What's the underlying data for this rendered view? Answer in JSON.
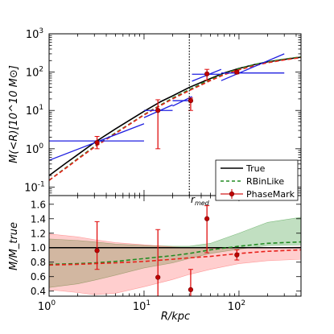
{
  "chart_data": [
    {
      "type": "line",
      "panel": "top",
      "ylabel": "M(<R)[10^10 M⊙]",
      "xscale": "log",
      "yscale": "log",
      "xlim": [
        1,
        450
      ],
      "ylim": [
        0.06,
        1000
      ],
      "xticks": [
        {
          "v": 1,
          "b": "10",
          "e": "0"
        },
        {
          "v": 10,
          "b": "10",
          "e": "1"
        },
        {
          "v": 100,
          "b": "10",
          "e": "2"
        }
      ],
      "yticks": [
        {
          "v": 0.1,
          "b": "10",
          "e": "-1"
        },
        {
          "v": 1,
          "b": "10",
          "e": "0"
        },
        {
          "v": 10,
          "b": "10",
          "e": "1"
        },
        {
          "v": 100,
          "b": "10",
          "e": "2"
        },
        {
          "v": 1000,
          "b": "10",
          "e": "3"
        }
      ],
      "rmed": {
        "x": 30,
        "label_base": "r",
        "label_sub": "med"
      },
      "legend": {
        "position": "lower-right",
        "entries": [
          "True",
          "RBinLike",
          "PhaseMark"
        ]
      },
      "series": [
        {
          "name": "True",
          "style": "solid",
          "color": "#000000",
          "x": [
            1,
            1.5,
            2,
            3,
            5,
            7,
            10,
            15,
            20,
            30,
            50,
            70,
            100,
            150,
            200,
            300,
            450
          ],
          "y": [
            0.2,
            0.42,
            0.7,
            1.45,
            3.3,
            5.5,
            9.5,
            17,
            24,
            40,
            68,
            95,
            125,
            160,
            185,
            215,
            245
          ]
        },
        {
          "name": "RBinLike",
          "style": "dashed",
          "color": "#228b22",
          "x": [
            1,
            1.5,
            2,
            3,
            5,
            7,
            10,
            15,
            20,
            30,
            50,
            70,
            100,
            150,
            200,
            300,
            450
          ],
          "y": [
            0.15,
            0.32,
            0.55,
            1.15,
            2.6,
            4.4,
            7.8,
            14,
            21,
            35,
            64,
            91,
            122,
            160,
            186,
            218,
            250
          ]
        },
        {
          "name": "PhaseMark",
          "style": "dashed",
          "color": "#e8221c",
          "x": [
            1,
            1.5,
            2,
            3,
            5,
            7,
            10,
            15,
            20,
            30,
            50,
            70,
            100,
            150,
            200,
            300,
            450
          ],
          "y": [
            0.15,
            0.31,
            0.53,
            1.1,
            2.5,
            4.3,
            7.6,
            13.5,
            20,
            33,
            60,
            86,
            115,
            150,
            176,
            208,
            240
          ]
        }
      ],
      "phasemark_points": [
        {
          "x": 3.2,
          "y": 1.45,
          "ylo": 1.0,
          "yhi": 2.1
        },
        {
          "x": 14,
          "y": 10,
          "ylo": 1.0,
          "yhi": 19
        },
        {
          "x": 31,
          "y": 18,
          "ylo": 10,
          "yhi": 21
        },
        {
          "x": 46,
          "y": 90,
          "ylo": 62,
          "yhi": 118
        },
        {
          "x": 95,
          "y": 100,
          "ylo": 90,
          "yhi": 112
        }
      ],
      "blue_bins": [
        {
          "hx": [
            1,
            10
          ],
          "hy": 1.6,
          "sx": [
            1,
            10
          ],
          "sy": [
            0.5,
            4.5
          ]
        },
        {
          "hx": [
            10,
            20
          ],
          "hy": 10,
          "sx": [
            10,
            20
          ],
          "sy": [
            6.5,
            14
          ]
        },
        {
          "hx": [
            20,
            32
          ],
          "hy": 18,
          "sx": [
            20,
            32
          ],
          "sy": [
            13,
            23
          ]
        },
        {
          "hx": [
            32,
            65
          ],
          "hy": 88,
          "sx": [
            32,
            65
          ],
          "sy": [
            58,
            118
          ]
        },
        {
          "hx": [
            65,
            300
          ],
          "hy": 95,
          "sx": [
            65,
            300
          ],
          "sy": [
            60,
            300
          ]
        }
      ]
    },
    {
      "type": "line",
      "panel": "bottom",
      "xlabel": "R/kpc",
      "ylabel": "M/M_true",
      "xscale": "log",
      "xlim": [
        1,
        450
      ],
      "ylim": [
        0.33,
        1.72
      ],
      "yticks": [
        0.4,
        0.6,
        0.8,
        1.0,
        1.2,
        1.4,
        1.6
      ],
      "series": [
        {
          "name": "True",
          "style": "solid",
          "color": "#000000",
          "x": [
            1,
            450
          ],
          "y": [
            1.0,
            1.0
          ]
        },
        {
          "name": "RBinLike",
          "style": "dashed",
          "color": "#228b22",
          "x": [
            1,
            2,
            3,
            5,
            10,
            20,
            30,
            50,
            100,
            200,
            450
          ],
          "y": [
            0.77,
            0.78,
            0.79,
            0.81,
            0.85,
            0.89,
            0.92,
            0.97,
            1.02,
            1.06,
            1.08
          ]
        },
        {
          "name": "PhaseMark",
          "style": "dashed",
          "color": "#e8221c",
          "x": [
            1,
            2,
            3,
            5,
            10,
            20,
            30,
            50,
            100,
            200,
            450
          ],
          "y": [
            0.76,
            0.77,
            0.78,
            0.79,
            0.81,
            0.84,
            0.86,
            0.88,
            0.92,
            0.95,
            0.97
          ]
        }
      ],
      "bands": [
        {
          "name": "RBinLike",
          "color": "#228b22",
          "x": [
            1,
            2,
            3,
            5,
            10,
            20,
            30,
            50,
            100,
            200,
            450
          ],
          "lo": [
            0.45,
            0.5,
            0.55,
            0.62,
            0.72,
            0.79,
            0.85,
            0.92,
            0.98,
            1.03,
            1.04
          ],
          "hi": [
            1.12,
            1.1,
            1.08,
            1.05,
            1.03,
            1.02,
            1.02,
            1.06,
            1.2,
            1.35,
            1.42
          ]
        },
        {
          "name": "PhaseMark",
          "color": "#ff4f4f",
          "x": [
            1,
            2,
            3,
            5,
            10,
            20,
            30,
            50,
            100,
            200,
            450
          ],
          "lo": [
            0.42,
            0.38,
            0.35,
            0.37,
            0.46,
            0.56,
            0.63,
            0.7,
            0.78,
            0.82,
            0.84
          ],
          "hi": [
            1.19,
            1.15,
            1.11,
            1.07,
            1.04,
            1.01,
            1.0,
            0.99,
            1.0,
            1.0,
            1.01
          ]
        }
      ],
      "phasemark_points": [
        {
          "x": 3.2,
          "y": 0.96,
          "ylo": 0.7,
          "yhi": 1.36
        },
        {
          "x": 14,
          "y": 0.59,
          "ylo": 0.2,
          "yhi": 1.25
        },
        {
          "x": 31,
          "y": 0.42,
          "ylo": 0.33,
          "yhi": 0.7
        },
        {
          "x": 46,
          "y": 1.4,
          "ylo": 0.93,
          "yhi": 1.58
        },
        {
          "x": 95,
          "y": 0.9,
          "ylo": 0.83,
          "yhi": 0.97
        }
      ]
    }
  ]
}
